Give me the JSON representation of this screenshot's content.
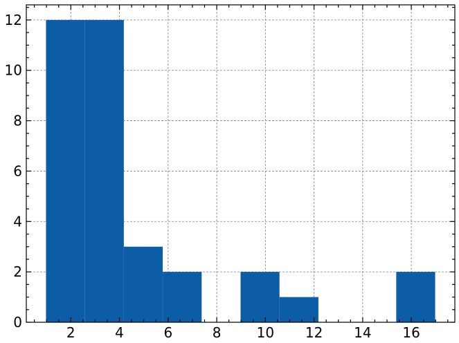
{
  "chart_data": {
    "type": "bar",
    "style": "histogram",
    "bins": [
      {
        "x0": 0.98,
        "x1": 2.58,
        "count": 12
      },
      {
        "x0": 2.58,
        "x1": 4.18,
        "count": 12
      },
      {
        "x0": 4.18,
        "x1": 5.78,
        "count": 3
      },
      {
        "x0": 5.78,
        "x1": 7.38,
        "count": 2
      },
      {
        "x0": 7.38,
        "x1": 8.98,
        "count": 0
      },
      {
        "x0": 8.98,
        "x1": 10.58,
        "count": 2
      },
      {
        "x0": 10.58,
        "x1": 12.18,
        "count": 1
      },
      {
        "x0": 12.18,
        "x1": 13.78,
        "count": 0
      },
      {
        "x0": 13.78,
        "x1": 15.38,
        "count": 0
      },
      {
        "x0": 15.38,
        "x1": 16.98,
        "count": 2
      }
    ],
    "xlim": [
      0.17,
      17.79
    ],
    "ylim": [
      0,
      12.6
    ],
    "x_ticks": [
      "2",
      "4",
      "6",
      "8",
      "10",
      "12",
      "14",
      "16"
    ],
    "y_ticks": [
      "0",
      "2",
      "4",
      "6",
      "8",
      "10",
      "12"
    ],
    "grid": true,
    "bar_color": "#0c5da5",
    "title": "",
    "xlabel": "",
    "ylabel": ""
  }
}
